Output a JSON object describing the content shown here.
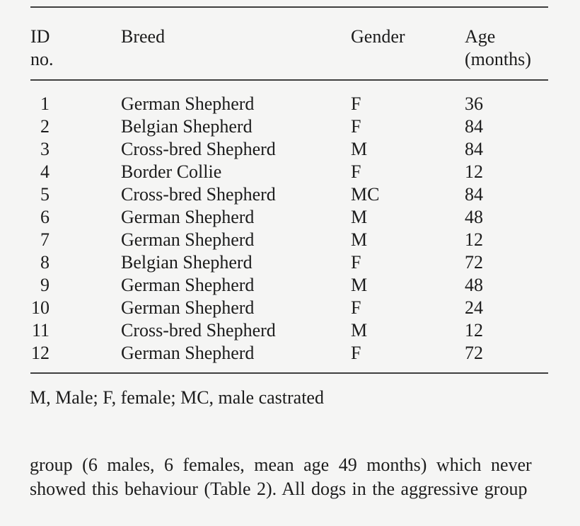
{
  "page": {
    "background_color": "#f5f5f4",
    "text_color": "#1c1c1c",
    "rule_color": "#3f3f3f"
  },
  "table": {
    "header": {
      "id_line1": "ID",
      "id_line2": "no.",
      "breed": "Breed",
      "gender": "Gender",
      "age_line1": "Age",
      "age_line2": "(months)"
    },
    "rows": [
      {
        "id": "1",
        "breed": "German Shepherd",
        "gender": "F",
        "age": "36"
      },
      {
        "id": "2",
        "breed": "Belgian Shepherd",
        "gender": "F",
        "age": "84"
      },
      {
        "id": "3",
        "breed": "Cross-bred Shepherd",
        "gender": "M",
        "age": "84"
      },
      {
        "id": "4",
        "breed": "Border Collie",
        "gender": "F",
        "age": "12"
      },
      {
        "id": "5",
        "breed": "Cross-bred Shepherd",
        "gender": "MC",
        "age": "84"
      },
      {
        "id": "6",
        "breed": "German Shepherd",
        "gender": "M",
        "age": "48"
      },
      {
        "id": "7",
        "breed": "German Shepherd",
        "gender": "M",
        "age": "12"
      },
      {
        "id": "8",
        "breed": "Belgian Shepherd",
        "gender": "F",
        "age": "72"
      },
      {
        "id": "9",
        "breed": "German Shepherd",
        "gender": "M",
        "age": "48"
      },
      {
        "id": "10",
        "breed": "German Shepherd",
        "gender": "F",
        "age": "24"
      },
      {
        "id": "11",
        "breed": "Cross-bred Shepherd",
        "gender": "M",
        "age": "12"
      },
      {
        "id": "12",
        "breed": "German Shepherd",
        "gender": "F",
        "age": "72"
      }
    ],
    "footnote": "M, Male; F, female; MC, male castrated"
  },
  "body_text": {
    "line1": "group (6 males, 6 females, mean age 49 months) which never",
    "line2": "showed this behaviour (Table 2). All dogs in the aggressive group"
  }
}
